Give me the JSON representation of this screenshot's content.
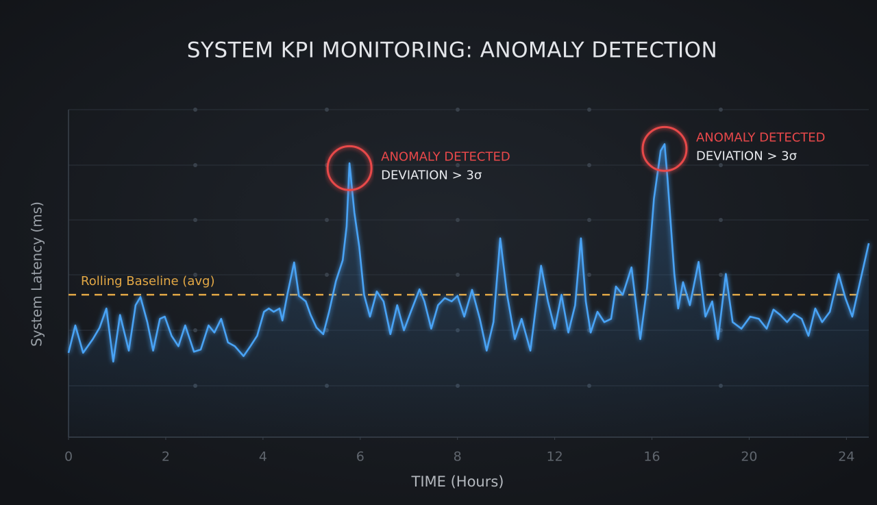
{
  "chart_data": {
    "type": "line",
    "title": "SYSTEM KPI MONITORING: ANOMALY DETECTION",
    "x_label": "TIME (Hours)",
    "y_label": "System Latency (ms)",
    "xlim": [
      0,
      8.23
    ],
    "ylim": [
      0,
      5.98
    ],
    "xticks": [
      0,
      {
        "value": 1,
        "label": "2"
      },
      {
        "value": 2,
        "label": "4"
      },
      {
        "value": 3,
        "label": "6"
      },
      {
        "value": 4,
        "label": "8"
      },
      {
        "value": 5,
        "label": "12"
      },
      {
        "value": 6,
        "label": "16"
      },
      {
        "value": 7,
        "label": "20"
      },
      {
        "value": 8,
        "label": "24"
      }
    ],
    "x": [
      0,
      0.07,
      0.15,
      0.25,
      0.32,
      0.39,
      0.46,
      0.53,
      0.62,
      0.69,
      0.74,
      0.81,
      0.87,
      0.94,
      0.99,
      1.06,
      1.13,
      1.2,
      1.29,
      1.36,
      1.44,
      1.5,
      1.57,
      1.64,
      1.71,
      1.8,
      1.87,
      1.94,
      2.01,
      2.06,
      2.11,
      2.17,
      2.2,
      2.25,
      2.32,
      2.37,
      2.44,
      2.49,
      2.55,
      2.62,
      2.68,
      2.75,
      2.82,
      2.86,
      2.89,
      2.94,
      2.99,
      3.04,
      3.1,
      3.17,
      3.24,
      3.31,
      3.38,
      3.45,
      3.52,
      3.61,
      3.66,
      3.73,
      3.8,
      3.87,
      3.94,
      4.0,
      4.07,
      4.15,
      4.23,
      4.3,
      4.37,
      4.44,
      4.51,
      4.59,
      4.66,
      4.75,
      4.86,
      4.93,
      5.0,
      5.07,
      5.14,
      5.21,
      5.27,
      5.32,
      5.37,
      5.44,
      5.51,
      5.58,
      5.63,
      5.7,
      5.79,
      5.88,
      5.95,
      6.02,
      6.09,
      6.13,
      6.16,
      6.23,
      6.27,
      6.32,
      6.39,
      6.48,
      6.55,
      6.62,
      6.68,
      6.76,
      6.83,
      6.92,
      7.01,
      7.1,
      7.18,
      7.25,
      7.32,
      7.39,
      7.46,
      7.54,
      7.61,
      7.68,
      7.75,
      7.83,
      7.92,
      7.99,
      8.06,
      8.15,
      8.23
    ],
    "series": [
      {
        "color": "#4aa3f5",
        "values": [
          1.54,
          2.04,
          1.54,
          1.79,
          2.0,
          2.35,
          1.38,
          2.23,
          1.58,
          2.41,
          2.56,
          2.1,
          1.58,
          2.16,
          2.2,
          1.85,
          1.66,
          2.04,
          1.56,
          1.6,
          2.04,
          1.91,
          2.16,
          1.73,
          1.66,
          1.48,
          1.66,
          1.85,
          2.29,
          2.35,
          2.29,
          2.35,
          2.13,
          2.6,
          3.19,
          2.58,
          2.48,
          2.23,
          2.0,
          1.88,
          2.29,
          2.85,
          3.23,
          3.85,
          5.0,
          4.1,
          3.48,
          2.6,
          2.2,
          2.66,
          2.48,
          1.88,
          2.41,
          1.95,
          2.29,
          2.7,
          2.48,
          1.98,
          2.41,
          2.54,
          2.48,
          2.58,
          2.2,
          2.69,
          2.16,
          1.58,
          2.1,
          3.63,
          2.6,
          1.79,
          2.16,
          1.58,
          3.13,
          2.48,
          1.98,
          2.6,
          1.91,
          2.41,
          3.63,
          2.48,
          1.91,
          2.29,
          2.1,
          2.16,
          2.75,
          2.6,
          3.1,
          1.79,
          2.73,
          4.35,
          5.23,
          5.35,
          4.73,
          2.98,
          2.35,
          2.83,
          2.41,
          3.2,
          2.2,
          2.48,
          1.79,
          2.98,
          2.1,
          1.98,
          2.2,
          2.16,
          1.98,
          2.33,
          2.23,
          2.1,
          2.25,
          2.16,
          1.85,
          2.35,
          2.1,
          2.29,
          2.98,
          2.54,
          2.2,
          2.91,
          3.54
        ]
      }
    ],
    "baseline": {
      "label": "Rolling Baseline (avg)",
      "value": 2.6,
      "color": "#e3a845"
    },
    "annotations": [
      {
        "x": 2.89,
        "y": 5.0,
        "label": "ANOMALY DETECTED",
        "detail": "DEVIATION > 3σ",
        "color": "#e8484a"
      },
      {
        "x": 6.13,
        "y": 5.35,
        "label": "ANOMALY DETECTED",
        "detail": "DEVIATION > 3σ",
        "color": "#e8484a"
      }
    ]
  }
}
